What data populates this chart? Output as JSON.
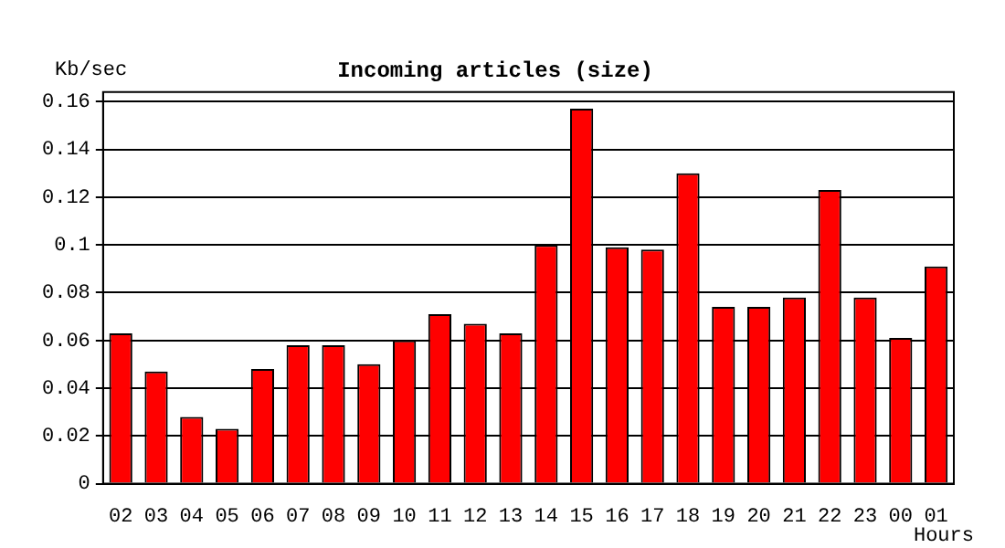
{
  "chart_data": {
    "type": "bar",
    "title": "Incoming articles (size)",
    "ylabel": "Kb/sec",
    "xlabel": "Hours",
    "categories": [
      "02",
      "03",
      "04",
      "05",
      "06",
      "07",
      "08",
      "09",
      "10",
      "11",
      "12",
      "13",
      "14",
      "15",
      "16",
      "17",
      "18",
      "19",
      "20",
      "21",
      "22",
      "23",
      "00",
      "01"
    ],
    "values": [
      0.063,
      0.047,
      0.028,
      0.023,
      0.048,
      0.058,
      0.058,
      0.05,
      0.06,
      0.071,
      0.067,
      0.063,
      0.1,
      0.157,
      0.099,
      0.098,
      0.13,
      0.074,
      0.074,
      0.078,
      0.123,
      0.078,
      0.061,
      0.091
    ],
    "color": "#ff0000",
    "ylim": [
      0,
      0.164
    ],
    "yticks": [
      0,
      0.02,
      0.04,
      0.06,
      0.08,
      0.1,
      0.12,
      0.14,
      0.16
    ],
    "grid": "y",
    "legend": false
  }
}
